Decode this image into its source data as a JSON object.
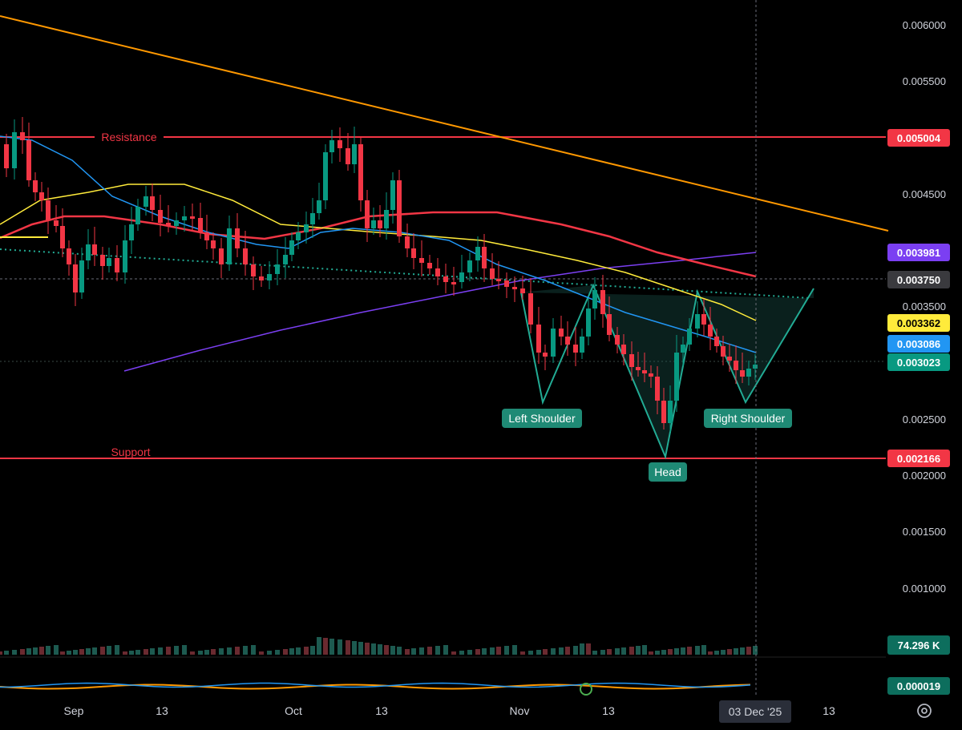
{
  "chart_data": {
    "type": "candlestick",
    "y_axis": {
      "scale": "linear",
      "ylim": [
        0.0005,
        0.0062
      ],
      "ticks": [
        "0.006000",
        "0.005500",
        "0.004500",
        "0.003500",
        "0.002500",
        "0.002000",
        "0.001500",
        "0.001000"
      ]
    },
    "x_axis": {
      "ticks": [
        "Sep",
        "13",
        "Oct",
        "13",
        "Nov",
        "13",
        "13"
      ],
      "current_date_label": "03 Dec '25"
    },
    "levels": [
      {
        "name": "Resistance",
        "value": 0.005004,
        "label": "0.005004",
        "color": "#f23645"
      },
      {
        "name": "Support",
        "value": 0.002166,
        "label": "0.002166",
        "color": "#f23645"
      }
    ],
    "price_tags": [
      {
        "value": 0.003981,
        "label": "0.003981",
        "bg": "#7b3ff2",
        "fg": "#ffffff"
      },
      {
        "value": 0.00375,
        "label": "0.003750",
        "bg": "#3a3a3e",
        "fg": "#ffffff"
      },
      {
        "value": 0.003362,
        "label": "0.003362",
        "bg": "#ffeb3b",
        "fg": "#000000"
      },
      {
        "value": 0.003086,
        "label": "0.003086",
        "bg": "#2196f3",
        "fg": "#ffffff"
      },
      {
        "value": 0.003023,
        "label": "0.003023",
        "bg": "#089981",
        "fg": "#ffffff"
      }
    ],
    "pattern": {
      "name": "Inverse head and shoulders",
      "labels": [
        "Left Shoulder",
        "Head",
        "Right Shoulder"
      ],
      "neckline_value": 0.0036
    },
    "volume": {
      "last_label": "74.296 K"
    },
    "oscillator": {
      "last_label": "0.000019"
    },
    "colors": {
      "up": "#089981",
      "down": "#f23645",
      "ma_fast": "#2196f3",
      "ma_mid": "#ffeb3b",
      "ma_slow": "#f23645",
      "ma_long": "#7b3ff2",
      "trendline": "#ff9800",
      "pattern": "#22ab94"
    }
  }
}
